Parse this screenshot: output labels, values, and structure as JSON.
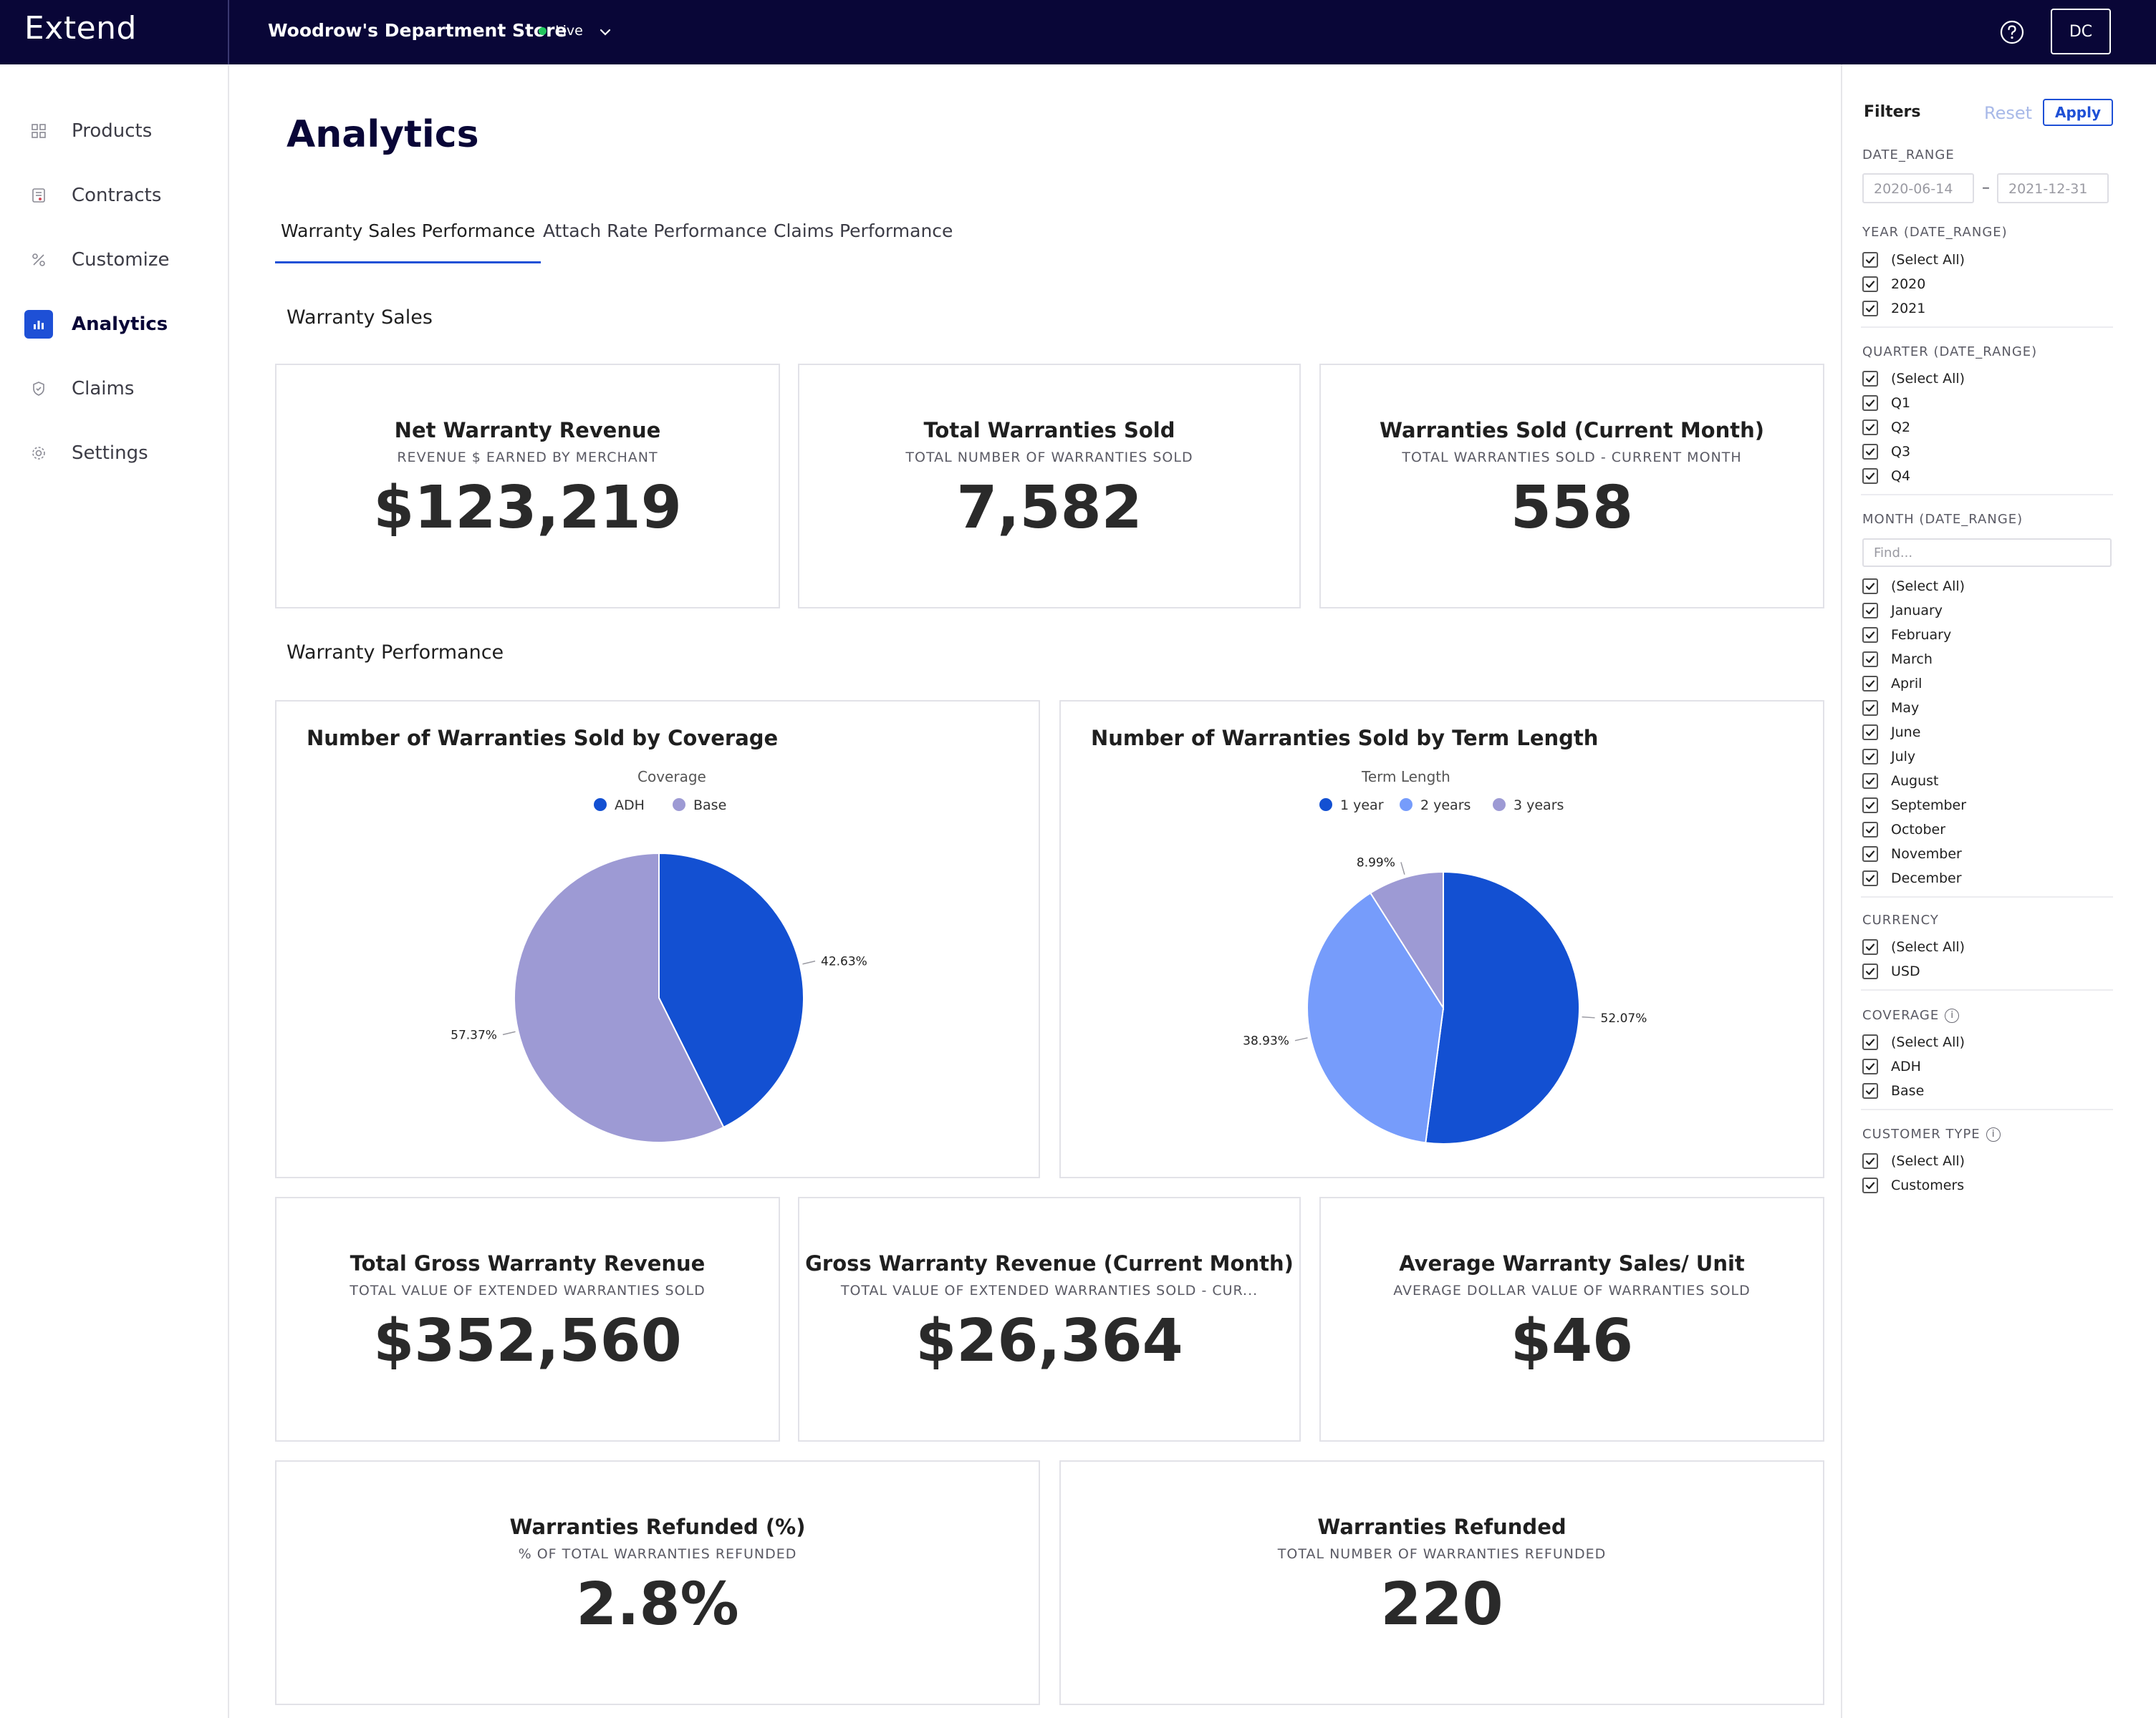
{
  "app": {
    "brand": "Extend",
    "store_name": "Woodrow's Department Store",
    "status": "Live",
    "user_initials": "DC"
  },
  "sidebar": {
    "items": [
      {
        "label": "Products",
        "icon": "grid-icon"
      },
      {
        "label": "Contracts",
        "icon": "contract-icon"
      },
      {
        "label": "Customize",
        "icon": "customize-icon"
      },
      {
        "label": "Analytics",
        "icon": "analytics-icon",
        "active": true
      },
      {
        "label": "Claims",
        "icon": "shield-icon"
      },
      {
        "label": "Settings",
        "icon": "gear-icon"
      }
    ]
  },
  "main": {
    "title": "Analytics",
    "tabs": [
      {
        "label": "Warranty Sales Performance",
        "active": true
      },
      {
        "label": "Attach Rate Performance"
      },
      {
        "label": "Claims Performance"
      }
    ],
    "sections": {
      "sales": "Warranty Sales",
      "performance": "Warranty Performance"
    },
    "kpis": [
      {
        "title": "Net Warranty Revenue",
        "subtitle": "REVENUE $ EARNED BY MERCHANT",
        "value": "$123,219"
      },
      {
        "title": "Total Warranties Sold",
        "subtitle": "TOTAL NUMBER OF WARRANTIES SOLD",
        "value": "7,582"
      },
      {
        "title": "Warranties Sold (Current Month)",
        "subtitle": "TOTAL WARRANTIES SOLD - CURRENT MONTH",
        "value": "558"
      },
      {
        "title": "Total Gross Warranty Revenue",
        "subtitle": "TOTAL VALUE OF EXTENDED WARRANTIES SOLD",
        "value": "$352,560"
      },
      {
        "title": "Gross Warranty Revenue (Current Month)",
        "subtitle": "TOTAL VALUE OF EXTENDED WARRANTIES SOLD - CUR...",
        "value": "$26,364"
      },
      {
        "title": "Average Warranty Sales/ Unit",
        "subtitle": "AVERAGE DOLLAR VALUE OF WARRANTIES SOLD",
        "value": "$46"
      },
      {
        "title": "Warranties Refunded (%)",
        "subtitle": "% OF TOTAL WARRANTIES REFUNDED",
        "value": "2.8%"
      },
      {
        "title": "Warranties Refunded",
        "subtitle": "TOTAL NUMBER OF WARRANTIES REFUNDED",
        "value": "220"
      }
    ]
  },
  "chart_data": [
    {
      "type": "pie",
      "title": "Number of Warranties Sold by Coverage",
      "legend_title": "Coverage",
      "legend_position": "top",
      "categories": [
        "ADH",
        "Base"
      ],
      "values": [
        42.63,
        57.37
      ],
      "labels": [
        "42.63%",
        "57.37%"
      ],
      "colors": [
        "#1350d2",
        "#9d9ad4"
      ]
    },
    {
      "type": "pie",
      "title": "Number of Warranties Sold by Term Length",
      "legend_title": "Term Length",
      "legend_position": "top",
      "categories": [
        "1 year",
        "2 years",
        "3 years"
      ],
      "values": [
        52.07,
        38.93,
        8.99
      ],
      "labels": [
        "52.07%",
        "38.93%",
        "8.99%"
      ],
      "colors": [
        "#1350d2",
        "#769cfb",
        "#9d9ad4"
      ]
    }
  ],
  "filters": {
    "title": "Filters",
    "reset_label": "Reset",
    "apply_label": "Apply",
    "date_range": {
      "label": "DATE_RANGE",
      "start": "2020-06-14",
      "end": "2021-12-31",
      "separator": "–"
    },
    "year": {
      "label": "YEAR (DATE_RANGE)",
      "options": [
        "(Select All)",
        "2020",
        "2021"
      ]
    },
    "quarter": {
      "label": "QUARTER (DATE_RANGE)",
      "options": [
        "(Select All)",
        "Q1",
        "Q2",
        "Q3",
        "Q4"
      ]
    },
    "month": {
      "label": "MONTH (DATE_RANGE)",
      "find_placeholder": "Find...",
      "options": [
        "(Select All)",
        "January",
        "February",
        "March",
        "April",
        "May",
        "June",
        "July",
        "August",
        "September",
        "October",
        "November",
        "December"
      ]
    },
    "currency": {
      "label": "CURRENCY",
      "options": [
        "(Select All)",
        "USD"
      ]
    },
    "coverage": {
      "label": "COVERAGE",
      "options": [
        "(Select All)",
        "ADH",
        "Base"
      ]
    },
    "customer_type": {
      "label": "CUSTOMER TYPE",
      "options": [
        "(Select All)",
        "Customers"
      ]
    }
  }
}
